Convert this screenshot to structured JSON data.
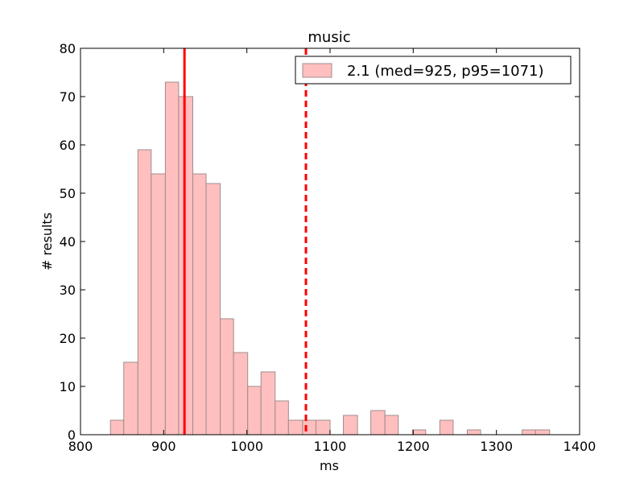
{
  "chart_data": {
    "type": "bar",
    "title": "music",
    "xlabel": "ms",
    "ylabel": "# results",
    "xlim": [
      800,
      1400
    ],
    "ylim": [
      0,
      80
    ],
    "xticks": [
      "800",
      "900",
      "1000",
      "1100",
      "1200",
      "1300",
      "1400"
    ],
    "yticks": [
      "0",
      "10",
      "20",
      "30",
      "40",
      "50",
      "60",
      "70",
      "80"
    ],
    "grid": false,
    "legend": {
      "placement": "top-right",
      "entries": [
        "2.1 (med=925, p95=1071)"
      ]
    },
    "colors": {
      "bar_fill": "#ffbfbf",
      "bar_edge": "#a08c8c",
      "line": "#ff0000"
    },
    "series": [
      {
        "name": "2.1 (med=925, p95=1071)",
        "bins": [
          {
            "x0": 836,
            "x1": 852,
            "count": 3
          },
          {
            "x0": 852,
            "x1": 869,
            "count": 15
          },
          {
            "x0": 869,
            "x1": 885,
            "count": 59
          },
          {
            "x0": 885,
            "x1": 902,
            "count": 54
          },
          {
            "x0": 902,
            "x1": 918,
            "count": 73
          },
          {
            "x0": 918,
            "x1": 935,
            "count": 70
          },
          {
            "x0": 935,
            "x1": 951,
            "count": 54
          },
          {
            "x0": 951,
            "x1": 968,
            "count": 52
          },
          {
            "x0": 968,
            "x1": 984,
            "count": 24
          },
          {
            "x0": 984,
            "x1": 1001,
            "count": 17
          },
          {
            "x0": 1001,
            "x1": 1017,
            "count": 10
          },
          {
            "x0": 1017,
            "x1": 1034,
            "count": 13
          },
          {
            "x0": 1034,
            "x1": 1050,
            "count": 7
          },
          {
            "x0": 1050,
            "x1": 1067,
            "count": 3
          },
          {
            "x0": 1067,
            "x1": 1083,
            "count": 3
          },
          {
            "x0": 1083,
            "x1": 1100,
            "count": 3
          },
          {
            "x0": 1100,
            "x1": 1116,
            "count": 0
          },
          {
            "x0": 1116,
            "x1": 1133,
            "count": 4
          },
          {
            "x0": 1133,
            "x1": 1149,
            "count": 0
          },
          {
            "x0": 1149,
            "x1": 1166,
            "count": 5
          },
          {
            "x0": 1166,
            "x1": 1182,
            "count": 4
          },
          {
            "x0": 1182,
            "x1": 1199,
            "count": 0
          },
          {
            "x0": 1199,
            "x1": 1215,
            "count": 1
          },
          {
            "x0": 1215,
            "x1": 1232,
            "count": 0
          },
          {
            "x0": 1232,
            "x1": 1248,
            "count": 3
          },
          {
            "x0": 1248,
            "x1": 1265,
            "count": 0
          },
          {
            "x0": 1265,
            "x1": 1281,
            "count": 1
          },
          {
            "x0": 1281,
            "x1": 1298,
            "count": 0
          },
          {
            "x0": 1298,
            "x1": 1314,
            "count": 0
          },
          {
            "x0": 1314,
            "x1": 1331,
            "count": 0
          },
          {
            "x0": 1331,
            "x1": 1347,
            "count": 1
          },
          {
            "x0": 1347,
            "x1": 1364,
            "count": 1
          }
        ],
        "median": 925,
        "p95": 1071
      }
    ]
  }
}
